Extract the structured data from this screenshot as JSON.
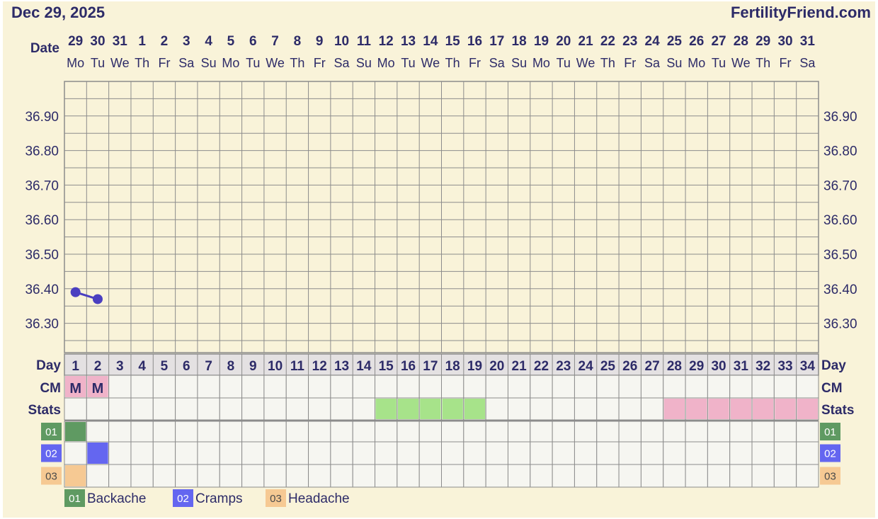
{
  "header": {
    "date": "Dec 29, 2025",
    "site": "FertilityFriend.com"
  },
  "labels": {
    "date": "Date",
    "day": "Day",
    "cm": "CM",
    "stats": "Stats"
  },
  "colors": {
    "background": "#f9f3d9",
    "navy": "#2d2b68",
    "grid": "#8c8c8c",
    "day_row_bg": "#e4e1e2",
    "cell_bg": "#f6f6f1",
    "cm_pink": "#f0b3c9",
    "stats_green": "#a7e38a",
    "stats_pink": "#f0b3c9",
    "temp_line": "#4a3fc0",
    "backache": "#5f9a62",
    "cramps": "#6466f0",
    "headache": "#f6c993"
  },
  "chart_data": {
    "type": "line",
    "dates": [
      "29",
      "30",
      "31",
      "1",
      "2",
      "3",
      "4",
      "5",
      "6",
      "7",
      "8",
      "9",
      "10",
      "11",
      "12",
      "13",
      "14",
      "15",
      "16",
      "17",
      "18",
      "19",
      "20",
      "21",
      "22",
      "23",
      "24",
      "25",
      "26",
      "27",
      "28",
      "29",
      "30",
      "31"
    ],
    "weekdays": [
      "Mo",
      "Tu",
      "We",
      "Th",
      "Fr",
      "Sa",
      "Su",
      "Mo",
      "Tu",
      "We",
      "Th",
      "Fr",
      "Sa",
      "Su",
      "Mo",
      "Tu",
      "We",
      "Th",
      "Fr",
      "Sa",
      "Su",
      "Mo",
      "Tu",
      "We",
      "Th",
      "Fr",
      "Sa",
      "Su",
      "Mo",
      "Tu",
      "We",
      "Th",
      "Fr",
      "Sa"
    ],
    "cycle_days": [
      1,
      2,
      3,
      4,
      5,
      6,
      7,
      8,
      9,
      10,
      11,
      12,
      13,
      14,
      15,
      16,
      17,
      18,
      19,
      20,
      21,
      22,
      23,
      24,
      25,
      26,
      27,
      28,
      29,
      30,
      31,
      32,
      33,
      34
    ],
    "y_ticks": [
      "36.90",
      "36.80",
      "36.70",
      "36.60",
      "36.50",
      "36.40",
      "36.30"
    ],
    "ylim": [
      36.2,
      37.0
    ],
    "series": [
      {
        "points": [
          {
            "day": 1,
            "temp": 36.39
          },
          {
            "day": 2,
            "temp": 36.37
          }
        ]
      }
    ],
    "cm": [
      {
        "day": 1,
        "value": "M"
      },
      {
        "day": 2,
        "value": "M"
      }
    ],
    "stats": [
      {
        "from": 15,
        "to": 19,
        "kind": "green"
      },
      {
        "from": 28,
        "to": 34,
        "kind": "pink"
      }
    ],
    "symptoms": [
      {
        "code": "01",
        "name": "Backache",
        "days": [
          1
        ]
      },
      {
        "code": "02",
        "name": "Cramps",
        "days": [
          2
        ]
      },
      {
        "code": "03",
        "name": "Headache",
        "days": [
          1
        ]
      }
    ]
  }
}
